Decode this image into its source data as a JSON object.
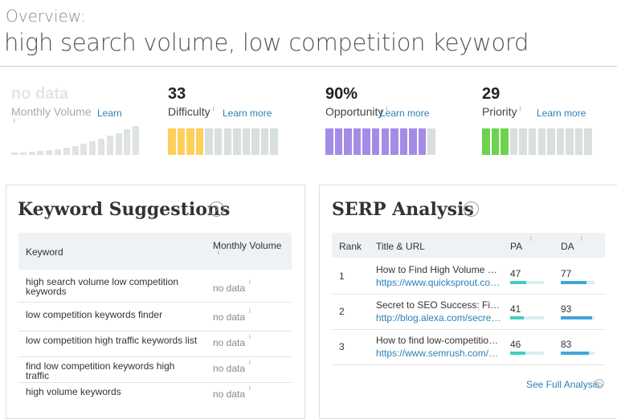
{
  "header": {
    "overline": "Overview:",
    "title": "high search volume, low competition keyword"
  },
  "metrics": [
    {
      "value_label": "no data",
      "label": "Monthly Volume",
      "info": "i",
      "link": "Learn"
    },
    {
      "value": 33,
      "label": "Difficulty",
      "info": "i",
      "link": "Learn more",
      "color": "#ffcf5c"
    },
    {
      "value": 90,
      "value_label": "90%",
      "label": "Opportunity",
      "info": "i",
      "link": "Learn more",
      "color": "#a48ce6"
    },
    {
      "value": 29,
      "label": "Priority",
      "info": "i",
      "link": "Learn more",
      "color": "#6dd24e"
    }
  ],
  "suggestions": {
    "title": "Keyword Suggestions",
    "columns": [
      "Keyword",
      "Monthly Volume"
    ],
    "column_info": "i",
    "rows": [
      [
        "high search volume low competition keywords",
        "no data"
      ],
      [
        "low competition keywords finder",
        "no data"
      ],
      [
        "low competition high traffic keywords list",
        "no data"
      ],
      [
        "find low competition keywords high traffic",
        "no data"
      ],
      [
        "high volume keywords",
        "no data"
      ]
    ],
    "row_info": "i"
  },
  "serp": {
    "title": "SERP Analysis",
    "columns": [
      "Rank",
      "Title & URL",
      "PA",
      "DA"
    ],
    "column_info": "i",
    "rows": [
      {
        "rank": 1,
        "title": "How to Find High Volume Key...",
        "url": "https://www.quicksprout.com...",
        "pa": 47,
        "da": 77
      },
      {
        "rank": 2,
        "title": "Secret to SEO Success: Find L...",
        "url": "http://blog.alexa.com/secret-t...",
        "pa": 41,
        "da": 93
      },
      {
        "rank": 3,
        "title": "How to find low-competition k...",
        "url": "https://www.semrush.com/bl...",
        "pa": 46,
        "da": 83
      }
    ],
    "link": "See Full Analysis"
  }
}
